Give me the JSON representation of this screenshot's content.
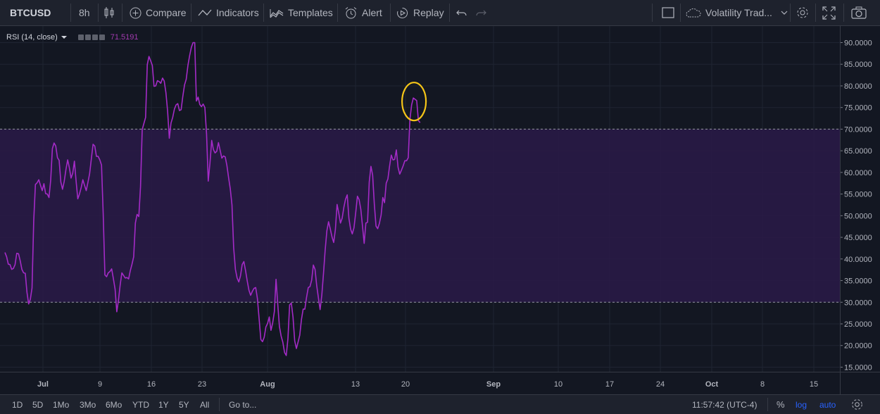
{
  "toolbar": {
    "symbol": "BTCUSD",
    "interval": "8h",
    "compare": "Compare",
    "indicators": "Indicators",
    "templates": "Templates",
    "alert": "Alert",
    "replay": "Replay",
    "layout_name": "Volatility Trad..."
  },
  "legend": {
    "label": "RSI (14, close)",
    "value": "71.5191"
  },
  "bottom": {
    "ranges": [
      "1D",
      "5D",
      "1Mo",
      "3Mo",
      "6Mo",
      "YTD",
      "1Y",
      "5Y",
      "All"
    ],
    "goto": "Go to...",
    "time": "11:57:42 (UTC-4)",
    "percent": "%",
    "log": "log",
    "auto": "auto"
  },
  "colors": {
    "line": "#a42bc7",
    "band": "#2a1a48",
    "highlight": "#f5c518",
    "background": "#131722"
  },
  "chart_data": {
    "type": "line",
    "series": [
      {
        "name": "RSI (14, close)",
        "values": [
          41.5,
          40.5,
          38.8,
          38.7,
          37.6,
          37.8,
          38.7,
          41.3,
          41.2,
          39.6,
          37.6,
          36.8,
          36.7,
          32.3,
          29.6,
          30.7,
          33.3,
          48.8,
          57.2,
          57.6,
          58.3,
          57.0,
          55.8,
          57.4,
          55.1,
          55.0,
          54.2,
          58.2,
          65.5,
          66.8,
          66.1,
          63.4,
          62.8,
          57.8,
          56.1,
          57.9,
          60.7,
          62.9,
          61.1,
          58.7,
          59.8,
          62.6,
          58.0,
          53.9,
          55.0,
          56.5,
          58.3,
          57.0,
          55.8,
          57.7,
          59.7,
          63.2,
          66.5,
          66.1,
          63.7,
          63.7,
          62.9,
          61.7,
          50.4,
          36.3,
          35.9,
          36.8,
          37.1,
          37.7,
          35.5,
          33.0,
          27.8,
          30.5,
          34.0,
          36.8,
          36.2,
          35.6,
          35.7,
          35.4,
          37.3,
          38.8,
          40.5,
          48.3,
          50.3,
          49.8,
          56.7,
          69.9,
          71.3,
          72.7,
          84.9,
          86.8,
          85.8,
          84.7,
          79.9,
          80.0,
          81.2,
          81.0,
          80.6,
          81.8,
          81.1,
          78.4,
          74.1,
          67.9,
          71.4,
          72.7,
          74.6,
          75.6,
          75.9,
          74.3,
          74.5,
          77.6,
          80.2,
          81.5,
          84.8,
          87.0,
          88.9,
          90.0,
          90.0,
          76.5,
          77.4,
          75.7,
          75.2,
          75.8,
          75.0,
          68.9,
          58.0,
          62.1,
          67.4,
          65.3,
          64.5,
          64.9,
          66.9,
          65.1,
          63.3,
          63.8,
          63.6,
          61.6,
          58.8,
          56.2,
          52.5,
          42.6,
          37.6,
          35.6,
          34.7,
          36.1,
          38.7,
          39.4,
          37.3,
          34.9,
          32.8,
          31.6,
          32.5,
          33.2,
          33.4,
          30.9,
          26.1,
          21.4,
          20.9,
          21.9,
          24.3,
          25.1,
          26.6,
          23.5,
          25.2,
          27.8,
          35.3,
          29.6,
          24.4,
          22.2,
          20.8,
          18.4,
          17.7,
          21.6,
          29.4,
          29.8,
          26.6,
          21.1,
          19.3,
          20.8,
          22.4,
          26.0,
          28.4,
          28.4,
          31.1,
          33.4,
          33.6,
          35.1,
          38.6,
          37.6,
          33.8,
          31.0,
          28.3,
          31.6,
          36.6,
          42.1,
          46.5,
          48.6,
          47.0,
          45.1,
          43.8,
          46.8,
          52.6,
          50.6,
          48.3,
          49.4,
          51.9,
          53.8,
          54.8,
          49.4,
          46.9,
          45.8,
          47.2,
          50.6,
          54.5,
          53.7,
          51.5,
          47.6,
          43.6,
          48.3,
          48.5,
          57.8,
          61.4,
          59.4,
          52.7,
          47.6,
          47.0,
          48.2,
          50.2,
          54.2,
          53.0,
          57.5,
          58.5,
          61.5,
          64.0,
          62.9,
          63.0,
          65.2,
          61.2,
          59.6,
          60.5,
          61.5,
          62.7,
          62.7,
          63.4,
          72.3,
          75.6,
          77.2,
          76.9,
          76.6,
          72.0,
          71.5
        ]
      }
    ],
    "x_start": "2018-06-26",
    "x_step_hours": 8,
    "x_ticks": [
      "Jul",
      "9",
      "16",
      "23",
      "Aug",
      "13",
      "20",
      "Sep",
      "10",
      "17",
      "24",
      "Oct",
      "8",
      "15"
    ],
    "y_ticks": [
      "90.0000",
      "85.0000",
      "80.0000",
      "75.0000",
      "70.0000",
      "65.0000",
      "60.0000",
      "55.0000",
      "50.0000",
      "45.0000",
      "40.0000",
      "35.0000",
      "30.0000",
      "25.0000",
      "20.0000",
      "15.0000"
    ],
    "ylim": [
      15,
      90
    ],
    "upper_band": 70,
    "lower_band": 30,
    "grid": true,
    "highlight_annotation": {
      "shape": "ellipse",
      "around": "last peak (~76)"
    }
  }
}
